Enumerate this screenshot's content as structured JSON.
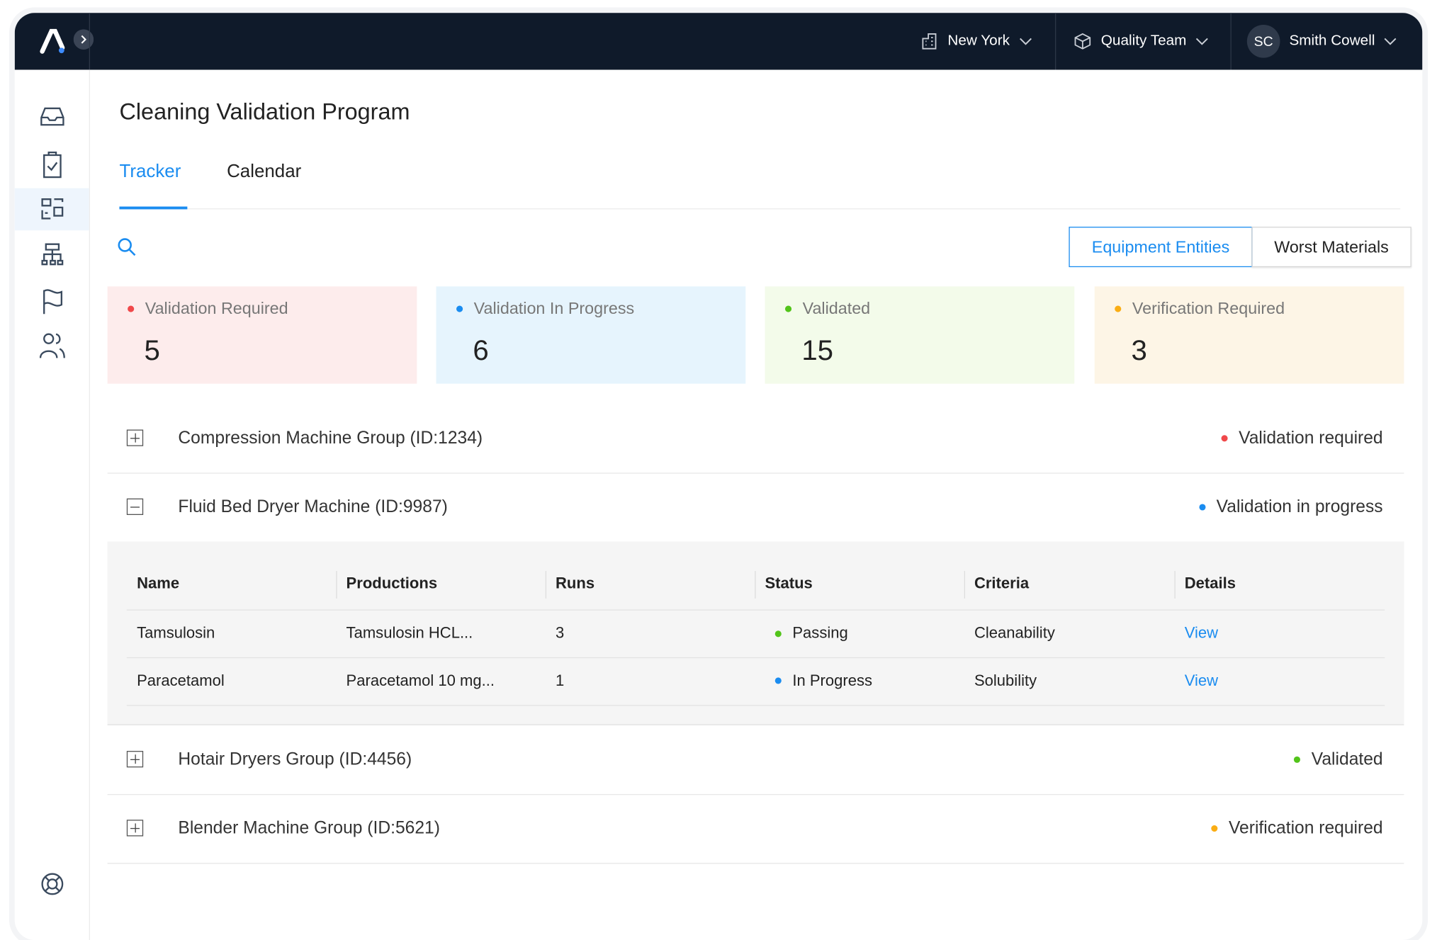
{
  "header": {
    "location": "New York",
    "team": "Quality Team",
    "user_initials": "SC",
    "user_name": "Smith Cowell"
  },
  "title": "Cleaning Validation Program",
  "tabs": [
    "Tracker",
    "Calendar"
  ],
  "toggles": [
    "Equipment Entities",
    "Worst Materials"
  ],
  "stats": [
    {
      "label": "Validation Required",
      "value": "5",
      "color": "#f0484a",
      "background": "#fdecec"
    },
    {
      "label": "Validation In Progress",
      "value": "6",
      "color": "#1a8cf0",
      "background": "#e6f4fd"
    },
    {
      "label": "Validated",
      "value": "15",
      "color": "#52c41a",
      "background": "#f3fbea"
    },
    {
      "label": "Verification Required",
      "value": "3",
      "color": "#faad14",
      "background": "#fdf5e6"
    }
  ],
  "groups": [
    {
      "name": "Compression Machine Group (ID:1234)",
      "status": "Validation required",
      "color": "#f0484a",
      "expanded": false
    },
    {
      "name": "Fluid Bed Dryer Machine (ID:9987)",
      "status": "Validation in progress",
      "color": "#1a8cf0",
      "expanded": true
    },
    {
      "name": "Hotair Dryers Group (ID:4456)",
      "status": "Validated",
      "color": "#52c41a",
      "expanded": false
    },
    {
      "name": "Blender Machine Group (ID:5621)",
      "status": "Verification required",
      "color": "#faad14",
      "expanded": false
    }
  ],
  "table": {
    "columns": [
      "Name",
      "Productions",
      "Runs",
      "Status",
      "Criteria",
      "Details"
    ],
    "rows": [
      [
        "Tamsulosin",
        "Tamsulosin HCL...",
        "3",
        "Passing",
        "Cleanability",
        "View"
      ],
      [
        "Paracetamol",
        "Paracetamol 10 mg...",
        "1",
        "In Progress",
        "Solubility",
        "View"
      ]
    ],
    "status_colors": [
      "#52c41a",
      "#1a8cf0"
    ]
  }
}
